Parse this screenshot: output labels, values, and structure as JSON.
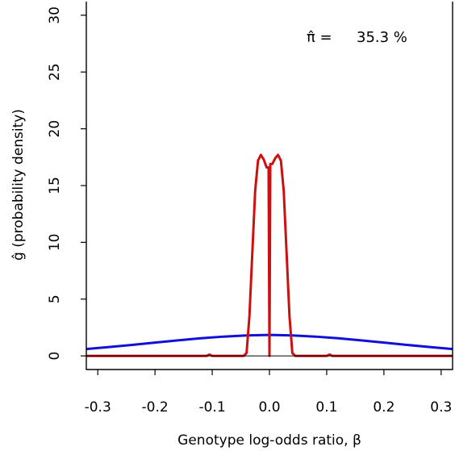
{
  "chart_data": {
    "type": "line",
    "xlabel": "Genotype log-odds ratio, β",
    "ylabel": "ĝ (probability density)",
    "xlim": [
      -0.32,
      0.32
    ],
    "ylim": [
      0,
      30
    ],
    "x_ticks": [
      "-0.3",
      "-0.2",
      "-0.1",
      "0.0",
      "0.1",
      "0.2",
      "0.3"
    ],
    "y_ticks": [
      "0",
      "5",
      "10",
      "15",
      "20",
      "25",
      "30"
    ],
    "x_tick_values": [
      -0.3,
      -0.2,
      -0.1,
      0.0,
      0.1,
      0.2,
      0.3
    ],
    "y_tick_values": [
      0,
      5,
      10,
      15,
      20,
      25,
      30
    ],
    "grid": false,
    "reference_line": {
      "y": 0,
      "color": "#000000"
    },
    "annotation": {
      "symbol": "π̂ =",
      "value": "35.3 %",
      "placement": "top-right"
    },
    "series": [
      {
        "color": "#1010d8",
        "x": [
          -0.32,
          -0.28,
          -0.24,
          -0.2,
          -0.16,
          -0.12,
          -0.08,
          -0.04,
          0.0,
          0.04,
          0.08,
          0.12,
          0.16,
          0.2,
          0.24,
          0.28,
          0.32
        ],
        "y": [
          0.6,
          0.78,
          0.97,
          1.17,
          1.37,
          1.55,
          1.7,
          1.8,
          1.85,
          1.8,
          1.7,
          1.55,
          1.37,
          1.17,
          0.97,
          0.78,
          0.6
        ]
      },
      {
        "color": "#cc1010",
        "x": [
          -0.32,
          -0.11,
          -0.105,
          -0.1,
          -0.06,
          -0.045,
          -0.04,
          -0.035,
          -0.03,
          -0.025,
          -0.02,
          -0.015,
          -0.01,
          -0.005,
          -0.0015,
          0.0,
          0.0015,
          0.005,
          0.01,
          0.015,
          0.02,
          0.025,
          0.03,
          0.035,
          0.04,
          0.045,
          0.06,
          0.1,
          0.105,
          0.11,
          0.32
        ],
        "y": [
          0.0,
          0.0,
          0.12,
          0.0,
          0.0,
          0.0,
          0.25,
          3.5,
          9.0,
          14.5,
          17.2,
          17.7,
          17.3,
          16.6,
          16.6,
          0.0,
          16.9,
          16.9,
          17.4,
          17.7,
          17.2,
          14.5,
          9.0,
          3.5,
          0.25,
          0.0,
          0.0,
          0.0,
          0.12,
          0.0,
          0.0
        ]
      }
    ]
  }
}
